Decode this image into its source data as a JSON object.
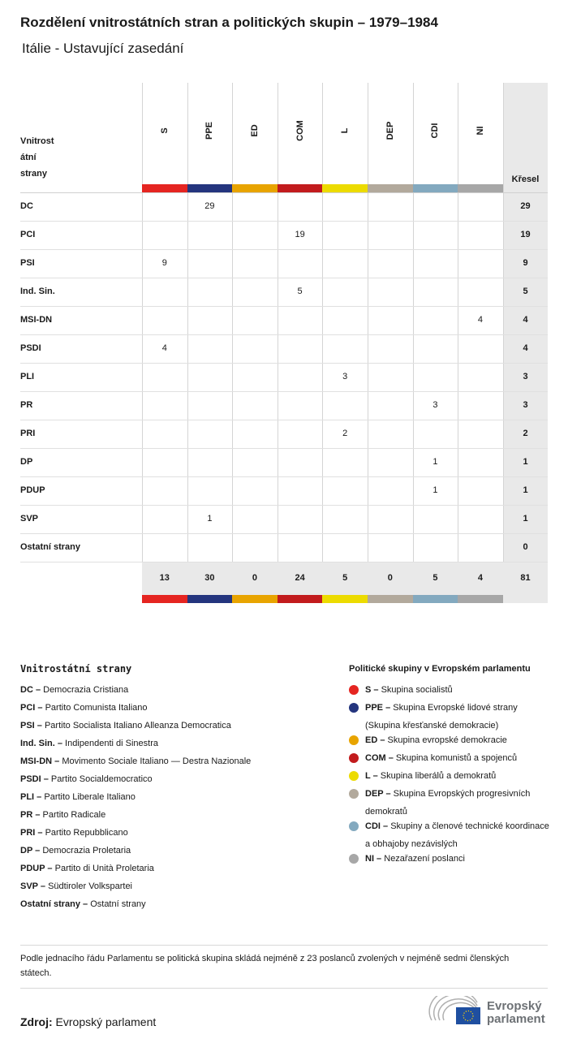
{
  "title": "Rozdělení vnitrostátních stran a politických skupin – 1979–1984",
  "subtitle": "Itálie - Ustavující zasedání",
  "chart_data": {
    "type": "table",
    "row_header": "Vnitrostátní strany",
    "row_header_lines": [
      "Vnitrost",
      "átní",
      "strany"
    ],
    "total_header": "Křesel",
    "groups": [
      {
        "code": "S",
        "color": "#e52521"
      },
      {
        "code": "PPE",
        "color": "#24357e"
      },
      {
        "code": "ED",
        "color": "#e8a400"
      },
      {
        "code": "COM",
        "color": "#c21b1d"
      },
      {
        "code": "L",
        "color": "#ecdb00"
      },
      {
        "code": "DEP",
        "color": "#b2a99c"
      },
      {
        "code": "CDI",
        "color": "#83a9bf"
      },
      {
        "code": "NI",
        "color": "#a7a7a7"
      }
    ],
    "rows": [
      {
        "party": "DC",
        "values": [
          null,
          29,
          null,
          null,
          null,
          null,
          null,
          null
        ],
        "total": 29
      },
      {
        "party": "PCI",
        "values": [
          null,
          null,
          null,
          19,
          null,
          null,
          null,
          null
        ],
        "total": 19
      },
      {
        "party": "PSI",
        "values": [
          9,
          null,
          null,
          null,
          null,
          null,
          null,
          null
        ],
        "total": 9
      },
      {
        "party": "Ind. Sin.",
        "values": [
          null,
          null,
          null,
          5,
          null,
          null,
          null,
          null
        ],
        "total": 5
      },
      {
        "party": "MSI-DN",
        "values": [
          null,
          null,
          null,
          null,
          null,
          null,
          null,
          4
        ],
        "total": 4
      },
      {
        "party": "PSDI",
        "values": [
          4,
          null,
          null,
          null,
          null,
          null,
          null,
          null
        ],
        "total": 4
      },
      {
        "party": "PLI",
        "values": [
          null,
          null,
          null,
          null,
          3,
          null,
          null,
          null
        ],
        "total": 3
      },
      {
        "party": "PR",
        "values": [
          null,
          null,
          null,
          null,
          null,
          null,
          3,
          null
        ],
        "total": 3
      },
      {
        "party": "PRI",
        "values": [
          null,
          null,
          null,
          null,
          2,
          null,
          null,
          null
        ],
        "total": 2
      },
      {
        "party": "DP",
        "values": [
          null,
          null,
          null,
          null,
          null,
          null,
          1,
          null
        ],
        "total": 1
      },
      {
        "party": "PDUP",
        "values": [
          null,
          null,
          null,
          null,
          null,
          null,
          1,
          null
        ],
        "total": 1
      },
      {
        "party": "SVP",
        "values": [
          null,
          1,
          null,
          null,
          null,
          null,
          null,
          null
        ],
        "total": 1
      },
      {
        "party": "Ostatní strany",
        "values": [
          null,
          null,
          null,
          null,
          null,
          null,
          null,
          null
        ],
        "total": 0
      }
    ],
    "column_totals": [
      13,
      30,
      0,
      24,
      5,
      0,
      5,
      4
    ],
    "grand_total": 81
  },
  "legend_parties": {
    "heading": "Vnitrostátní strany",
    "items": [
      {
        "code": "DC –",
        "name": "Democrazia Cristiana"
      },
      {
        "code": "PCI –",
        "name": "Partito Comunista Italiano"
      },
      {
        "code": "PSI –",
        "name": "Partito Socialista Italiano Alleanza Democratica"
      },
      {
        "code": "Ind. Sin. –",
        "name": "Indipendenti di Sinestra"
      },
      {
        "code": "MSI-DN –",
        "name": "Movimento Sociale Italiano — Destra Nazionale"
      },
      {
        "code": "PSDI –",
        "name": "Partito Socialdemocratico"
      },
      {
        "code": "PLI –",
        "name": "Partito Liberale Italiano"
      },
      {
        "code": "PR –",
        "name": "Partito Radicale"
      },
      {
        "code": "PRI –",
        "name": "Partito Repubblicano"
      },
      {
        "code": "DP –",
        "name": "Democrazia Proletaria"
      },
      {
        "code": "PDUP –",
        "name": "Partito di Unità Proletaria"
      },
      {
        "code": "SVP –",
        "name": "Südtiroler Volkspartei"
      },
      {
        "code": "Ostatní strany –",
        "name": "Ostatní strany"
      }
    ]
  },
  "legend_groups": {
    "heading": "Politické skupiny v Evropském parlamentu",
    "items": [
      {
        "code": "S –",
        "name": "Skupina socialistů",
        "color": "#e52521"
      },
      {
        "code": "PPE –",
        "name": "Skupina Evropské lidové strany (Skupina křesťanské demokracie)",
        "color": "#24357e"
      },
      {
        "code": "ED –",
        "name": "Skupina evropské demokracie",
        "color": "#e8a400"
      },
      {
        "code": "COM –",
        "name": "Skupina komunistů a spojenců",
        "color": "#c21b1d"
      },
      {
        "code": "L –",
        "name": "Skupina liberálů a demokratů",
        "color": "#ecdb00"
      },
      {
        "code": "DEP –",
        "name": "Skupina Evropských progresivních demokratů",
        "color": "#b2a99c"
      },
      {
        "code": "CDI –",
        "name": "Skupiny a členové technické koordinace a obhajoby nezávislých",
        "color": "#83a9bf"
      },
      {
        "code": "NI –",
        "name": "Nezařazení poslanci",
        "color": "#a7a7a7"
      }
    ]
  },
  "note": "Podle jednacího řádu Parlamentu se politická skupina skládá nejméně z 23 poslanců zvolených v nejméně sedmi členských státech.",
  "source_label": "Zdroj:",
  "source": "Evropský parlament",
  "logo_text": [
    "Evropský",
    "parlament"
  ]
}
